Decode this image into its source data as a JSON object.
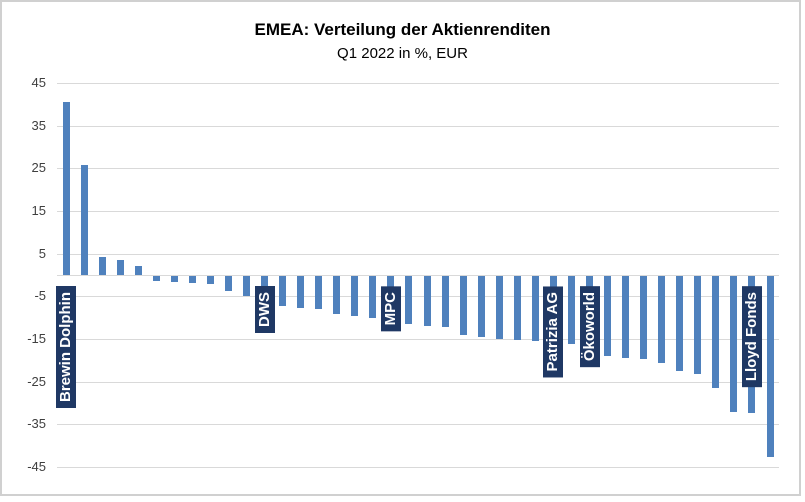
{
  "title": "EMEA: Verteilung der Aktienrenditen",
  "subtitle": "Q1 2022 in %, EUR",
  "colors": {
    "bar": "#4F81BD",
    "label_box": "#1F3864",
    "label_text": "#FFFFFF",
    "gridline": "#D9D9D9",
    "axis_line": "#D9D9D9",
    "axis_text": "#3F3F3F",
    "frame_border": "#D0D0D0",
    "background": "#FFFFFF"
  },
  "chart_data": {
    "type": "bar",
    "title": "EMEA: Verteilung der Aktienrenditen",
    "subtitle": "Q1 2022 in %, EUR",
    "xlabel": "",
    "ylabel": "",
    "ylim": [
      -45,
      45
    ],
    "yticks": [
      45,
      35,
      25,
      15,
      5,
      -5,
      -15,
      -25,
      -35,
      -45
    ],
    "grid": true,
    "legend": false,
    "values": [
      40.5,
      25.8,
      4.3,
      3.5,
      2.2,
      -1.2,
      -1.4,
      -1.7,
      -1.9,
      -3.4,
      -4.7,
      -5.9,
      -7.0,
      -7.4,
      -7.8,
      -9.0,
      -9.4,
      -9.8,
      -10.9,
      -11.3,
      -11.6,
      -12.0,
      -13.7,
      -14.4,
      -14.8,
      -15.0,
      -15.2,
      -15.6,
      -16.0,
      -17.5,
      -18.7,
      -19.1,
      -19.5,
      -20.3,
      -22.2,
      -23.0,
      -26.2,
      -31.8,
      -32.2,
      -42.5
    ],
    "annotations": [
      {
        "label": "Brewin Dolphin",
        "bar_index": 0
      },
      {
        "label": "DWS",
        "bar_index": 11
      },
      {
        "label": "MPC",
        "bar_index": 18
      },
      {
        "label": "Patrizia AG",
        "bar_index": 27
      },
      {
        "label": "Ökoworld",
        "bar_index": 29
      },
      {
        "label": "Lloyd Fonds",
        "bar_index": 38
      }
    ]
  }
}
